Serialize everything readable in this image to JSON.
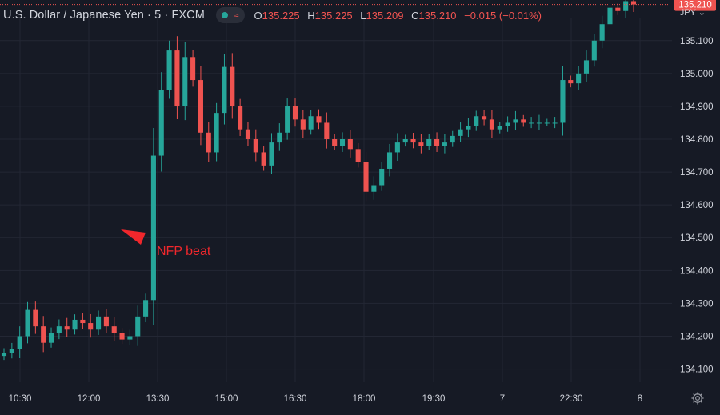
{
  "header": {
    "symbol": "U.S. Dollar / Japanese Yen · 5 · FXCM",
    "ohlc": [
      {
        "key": "O",
        "value": "135.225"
      },
      {
        "key": "H",
        "value": "135.225"
      },
      {
        "key": "L",
        "value": "135.209"
      },
      {
        "key": "C",
        "value": "135.210"
      }
    ],
    "change": "−0.015 (−0.01%)"
  },
  "currency_label": "JPY",
  "colors": {
    "background": "#161a25",
    "up": "#26a69a",
    "down": "#ef5350",
    "grid": "#232734",
    "text": "#d1d4dc",
    "annotation": "#f0272c"
  },
  "chart_data": {
    "type": "candlestick",
    "y_ticks": [
      135.1,
      135.0,
      134.9,
      134.8,
      134.7,
      134.6,
      134.5,
      134.4,
      134.3,
      134.2,
      134.1
    ],
    "ylim": [
      134.06,
      135.17
    ],
    "x_ticks": [
      "10:30",
      "12:00",
      "13:30",
      "15:00",
      "16:30",
      "18:00",
      "19:30",
      "7",
      "22:30",
      "8"
    ],
    "last_price": 135.21,
    "annotation": "NFP beat",
    "closes": [
      134.15,
      134.16,
      134.2,
      134.28,
      134.23,
      134.18,
      134.21,
      134.23,
      134.22,
      134.25,
      134.24,
      134.22,
      134.26,
      134.23,
      134.21,
      134.19,
      134.2,
      134.26,
      134.31,
      134.75,
      134.95,
      135.07,
      134.9,
      135.05,
      134.98,
      134.82,
      134.76,
      134.88,
      135.02,
      134.9,
      134.83,
      134.8,
      134.76,
      134.72,
      134.79,
      134.82,
      134.9,
      134.86,
      134.83,
      134.87,
      134.85,
      134.8,
      134.78,
      134.8,
      134.77,
      134.73,
      134.64,
      134.66,
      134.71,
      134.76,
      134.79,
      134.8,
      134.79,
      134.78,
      134.8,
      134.78,
      134.79,
      134.81,
      134.83,
      134.84,
      134.87,
      134.86,
      134.83,
      134.84,
      134.85,
      134.86,
      134.85,
      134.85,
      134.85,
      134.85,
      134.85,
      134.98,
      134.97,
      135.0,
      135.04,
      135.1,
      135.15,
      135.2,
      135.19,
      135.22,
      135.21
    ]
  }
}
